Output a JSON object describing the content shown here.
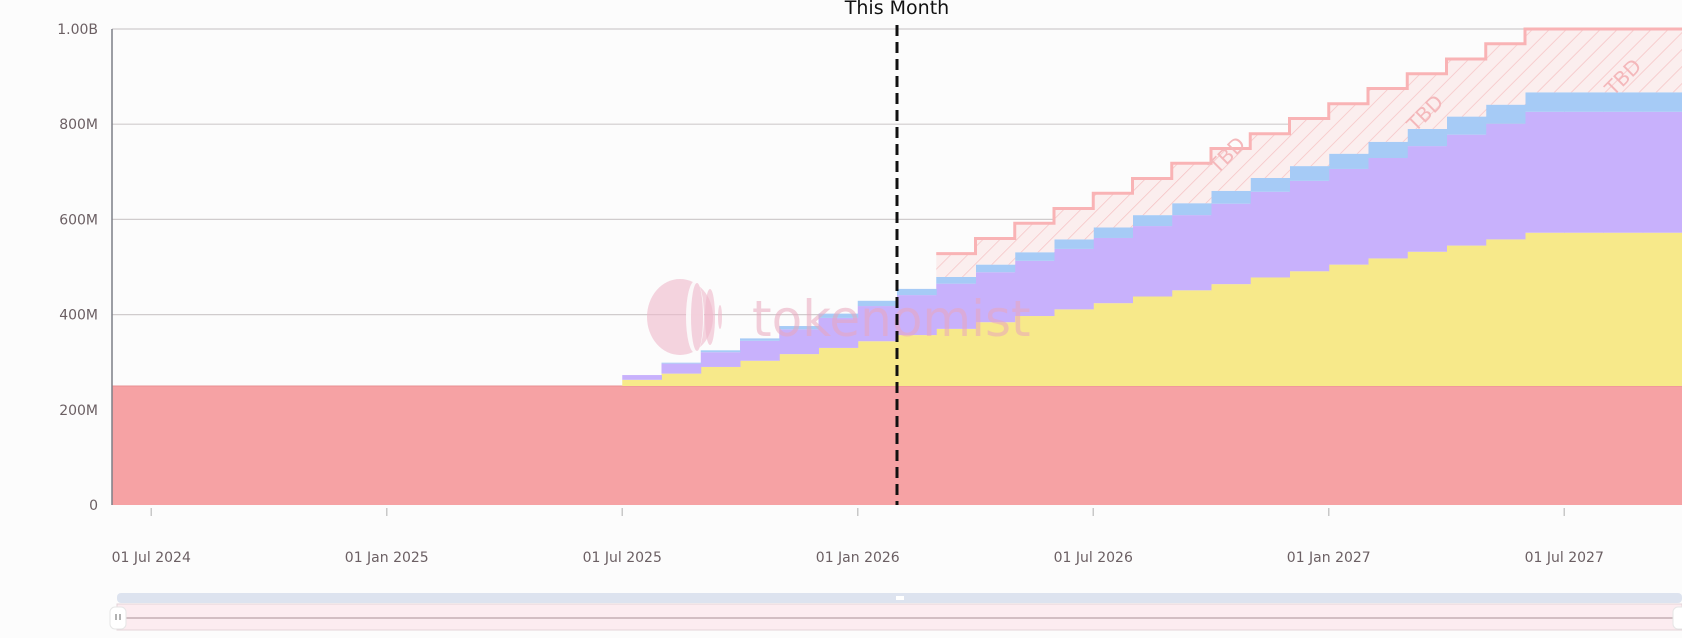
{
  "chart_data": {
    "type": "area",
    "step": true,
    "stacked": true,
    "title": "",
    "xlabel": "",
    "ylabel": "",
    "ylim": [
      0,
      1000
    ],
    "y_unit": "M",
    "y_ticks": [
      {
        "value": 0,
        "label": "0"
      },
      {
        "value": 200,
        "label": "200M"
      },
      {
        "value": 400,
        "label": "400M"
      },
      {
        "value": 600,
        "label": "600M"
      },
      {
        "value": 800,
        "label": "800M"
      },
      {
        "value": 1000,
        "label": "1.00B"
      }
    ],
    "x_ticks": [
      {
        "month": "2024-07",
        "label": "01 Jul 2024"
      },
      {
        "month": "2025-01",
        "label": "01 Jan 2025"
      },
      {
        "month": "2025-07",
        "label": "01 Jul 2025"
      },
      {
        "month": "2026-01",
        "label": "01 Jan 2026"
      },
      {
        "month": "2026-07",
        "label": "01 Jul 2026"
      },
      {
        "month": "2027-01",
        "label": "01 Jan 2027"
      },
      {
        "month": "2027-07",
        "label": "01 Jul 2027"
      }
    ],
    "grid": true,
    "legend": "none",
    "months": [
      "2024-06",
      "2024-07",
      "2024-08",
      "2024-09",
      "2024-10",
      "2024-11",
      "2024-12",
      "2025-01",
      "2025-02",
      "2025-03",
      "2025-04",
      "2025-05",
      "2025-06",
      "2025-07",
      "2025-08",
      "2025-09",
      "2025-10",
      "2025-11",
      "2025-12",
      "2026-01",
      "2026-02",
      "2026-03",
      "2026-04",
      "2026-05",
      "2026-06",
      "2026-07",
      "2026-08",
      "2026-09",
      "2026-10",
      "2026-11",
      "2026-12",
      "2027-01",
      "2027-02",
      "2027-03",
      "2027-04",
      "2027-05",
      "2027-06",
      "2027-07",
      "2027-08",
      "2027-09"
    ],
    "series": [
      {
        "color": "#f6a2a4",
        "values": [
          250,
          250,
          250,
          250,
          250,
          250,
          250,
          250,
          250,
          250,
          250,
          250,
          250,
          250,
          250,
          250,
          250,
          250,
          250,
          250,
          250,
          250,
          250,
          250,
          250,
          250,
          250,
          250,
          250,
          250,
          250,
          250,
          250,
          250,
          250,
          250,
          250,
          250,
          250,
          250
        ]
      },
      {
        "color": "#f7e98a",
        "values": [
          0,
          0,
          0,
          0,
          0,
          0,
          0,
          0,
          0,
          0,
          0,
          0,
          0,
          13,
          26,
          40,
          53,
          67,
          80,
          94,
          107,
          120,
          134,
          147,
          161,
          174,
          188,
          201,
          214,
          228,
          241,
          255,
          268,
          282,
          295,
          308,
          322,
          322,
          322,
          322
        ]
      },
      {
        "color": "#c8b1fc",
        "values": [
          0,
          0,
          0,
          0,
          0,
          0,
          0,
          0,
          0,
          0,
          0,
          0,
          0,
          10,
          21,
          31,
          42,
          52,
          63,
          74,
          84,
          95,
          105,
          116,
          127,
          137,
          148,
          158,
          169,
          180,
          190,
          201,
          211,
          222,
          233,
          243,
          254,
          254,
          254,
          254
        ]
      },
      {
        "color": "#a6cbf6",
        "values": [
          0,
          0,
          0,
          0,
          0,
          0,
          0,
          0,
          0,
          0,
          0,
          0,
          0,
          0,
          2,
          4,
          5,
          7,
          9,
          11,
          13,
          14,
          16,
          18,
          20,
          22,
          23,
          25,
          27,
          29,
          31,
          32,
          34,
          36,
          38,
          40,
          41,
          41,
          41,
          41
        ]
      },
      {
        "color": "#f9b3b5",
        "hatched": true,
        "label": "TBD",
        "values": [
          0,
          0,
          0,
          0,
          0,
          0,
          0,
          0,
          0,
          0,
          0,
          0,
          0,
          0,
          0,
          0,
          0,
          0,
          0,
          0,
          0,
          49,
          55,
          61,
          65,
          72,
          77,
          84,
          89,
          93,
          100,
          105,
          112,
          116,
          121,
          128,
          133,
          133,
          133,
          133
        ]
      }
    ],
    "annotations": [
      {
        "type": "vertical-dashed-line",
        "month": "2026-02",
        "label": "This Month"
      }
    ],
    "tbd_labels": [
      "TBD",
      "TBD",
      "TBD"
    ],
    "watermark": "tokenomist"
  }
}
